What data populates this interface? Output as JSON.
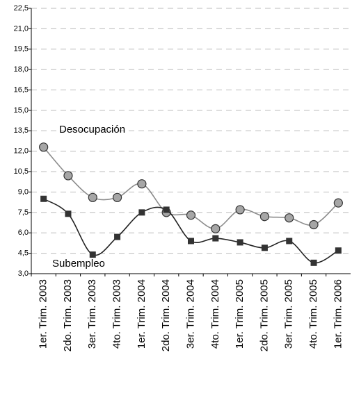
{
  "chart_data": {
    "type": "line",
    "categories": [
      "1er. Trim. 2003",
      "2do. Trim. 2003",
      "3er. Trim. 2003",
      "4to. Trim. 2003",
      "1er. Trim. 2004",
      "2do. Trim. 2004",
      "3er. Trim. 2004",
      "4to. Trim. 2004",
      "1er. Trim. 2005",
      "2do. Trim. 2005",
      "3er. Trim. 2005",
      "4to. Trim. 2005",
      "1er. Trim. 2006"
    ],
    "series": [
      {
        "name": "Desocupación",
        "color": "#8c8c8c",
        "marker": "circle",
        "values": [
          12.3,
          10.2,
          8.6,
          8.6,
          9.6,
          7.5,
          7.3,
          6.3,
          7.7,
          7.2,
          7.1,
          6.6,
          8.2
        ]
      },
      {
        "name": "Subempleo",
        "color": "#222222",
        "marker": "square",
        "values": [
          8.5,
          7.4,
          4.4,
          5.7,
          7.5,
          7.7,
          5.4,
          5.6,
          5.3,
          4.9,
          5.4,
          3.8,
          4.7
        ]
      }
    ],
    "ylim": [
      3.0,
      22.5
    ],
    "yticks": [
      {
        "value": 3.0,
        "label": "3,0"
      },
      {
        "value": 4.5,
        "label": "4,5"
      },
      {
        "value": 6.0,
        "label": "6,0"
      },
      {
        "value": 7.5,
        "label": "7,5"
      },
      {
        "value": 9.0,
        "label": "9,0"
      },
      {
        "value": 10.5,
        "label": "10,5"
      },
      {
        "value": 12.0,
        "label": "12,0"
      },
      {
        "value": 13.5,
        "label": "13,5"
      },
      {
        "value": 15.0,
        "label": "15,0"
      },
      {
        "value": 16.5,
        "label": "16,5"
      },
      {
        "value": 18.0,
        "label": "18,0"
      },
      {
        "value": 19.5,
        "label": "19,5"
      },
      {
        "value": 21.0,
        "label": "21,0"
      },
      {
        "value": 22.5,
        "label": "22,5"
      }
    ],
    "grid": true
  }
}
